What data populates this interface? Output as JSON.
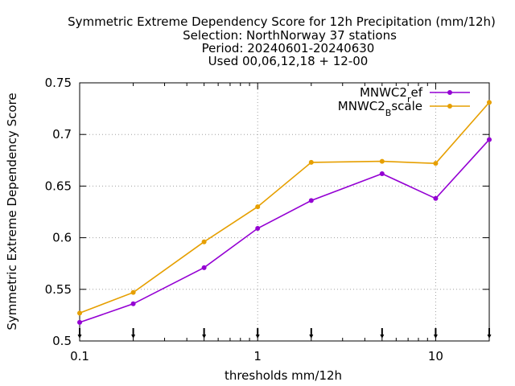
{
  "chart_data": {
    "type": "line",
    "title_lines": [
      "Symmetric Extreme Dependency Score  for 12h Precipitation (mm/12h)",
      "Selection: NorthNorway     37 stations",
      "Period: 20240601-20240630",
      "Used 00,06,12,18 + 12-00"
    ],
    "xlabel": "thresholds mm/12h",
    "ylabel": "Symmetric Extreme Dependency Score",
    "x_scale": "log",
    "xlim": [
      0.1,
      20
    ],
    "ylim": [
      0.5,
      0.75
    ],
    "x_ticks": [
      0.1,
      1,
      10
    ],
    "x_tick_labels": [
      "0.1",
      "1",
      "10"
    ],
    "y_ticks": [
      0.5,
      0.55,
      0.6,
      0.65,
      0.7,
      0.75
    ],
    "y_tick_labels": [
      "0.5",
      "0.55",
      "0.6",
      "0.65",
      "0.7",
      "0.75"
    ],
    "grid": true,
    "legend_position": "top-right",
    "x": [
      0.1,
      0.2,
      0.5,
      1,
      2,
      5,
      10,
      20
    ],
    "series": [
      {
        "name_base": "MNWC2",
        "name_sub": "r",
        "name_rest": "ef",
        "color": "#9400d3",
        "values": [
          0.518,
          0.536,
          0.571,
          0.609,
          0.636,
          0.662,
          0.638,
          0.695
        ]
      },
      {
        "name_base": "MNWC2",
        "name_sub": "B",
        "name_rest": "scale",
        "color": "#e69f00",
        "values": [
          0.527,
          0.547,
          0.596,
          0.63,
          0.673,
          0.674,
          0.672,
          0.731
        ]
      }
    ]
  }
}
